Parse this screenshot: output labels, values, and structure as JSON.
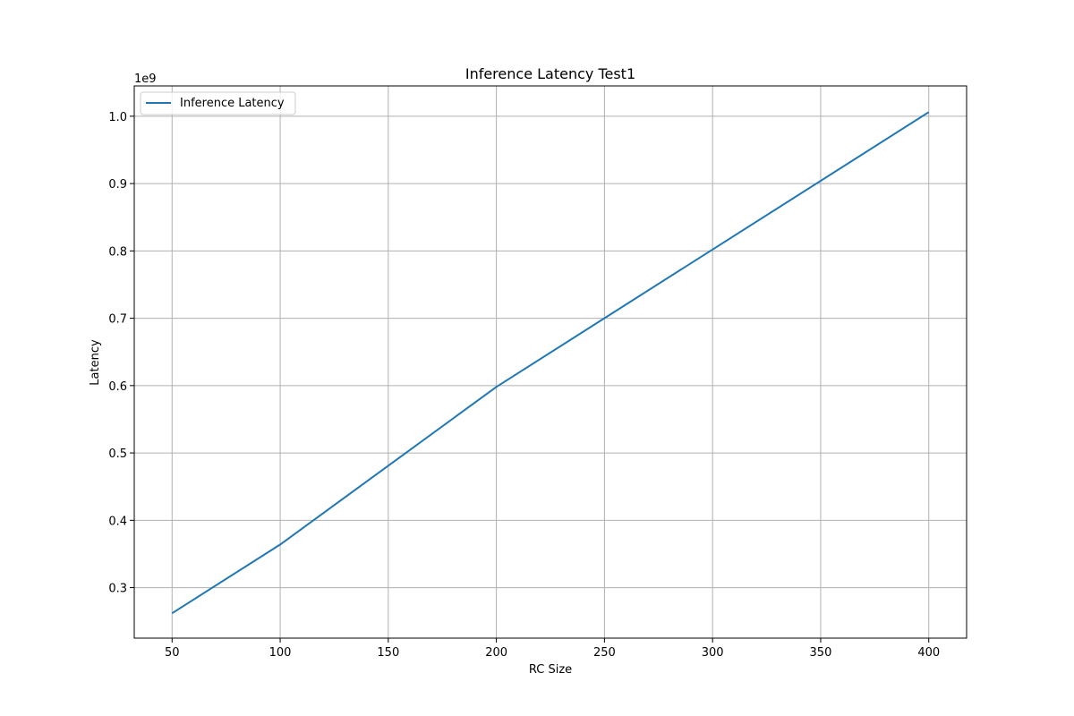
{
  "chart_data": {
    "type": "line",
    "title": "Inference Latency Test1",
    "xlabel": "RC Size",
    "ylabel": "Latency",
    "y_offset_label": "1e9",
    "y_scale_factor": 1000000000,
    "xlim": [
      32.5,
      417.5
    ],
    "ylim": [
      225000000,
      1045000000
    ],
    "x_ticks": [
      50,
      100,
      150,
      200,
      250,
      300,
      350,
      400
    ],
    "x_tick_labels": [
      "50",
      "100",
      "150",
      "200",
      "250",
      "300",
      "350",
      "400"
    ],
    "y_ticks": [
      300000000,
      400000000,
      500000000,
      600000000,
      700000000,
      800000000,
      900000000,
      1000000000
    ],
    "y_tick_labels": [
      "0.3",
      "0.4",
      "0.5",
      "0.6",
      "0.7",
      "0.8",
      "0.9",
      "1.0"
    ],
    "grid": true,
    "legend_position": "top-left",
    "series": [
      {
        "name": "Inference Latency",
        "color": "#1f77b4",
        "x": [
          50,
          100,
          200,
          400
        ],
        "values": [
          262000000,
          364000000,
          598000000,
          1006000000
        ]
      }
    ]
  }
}
